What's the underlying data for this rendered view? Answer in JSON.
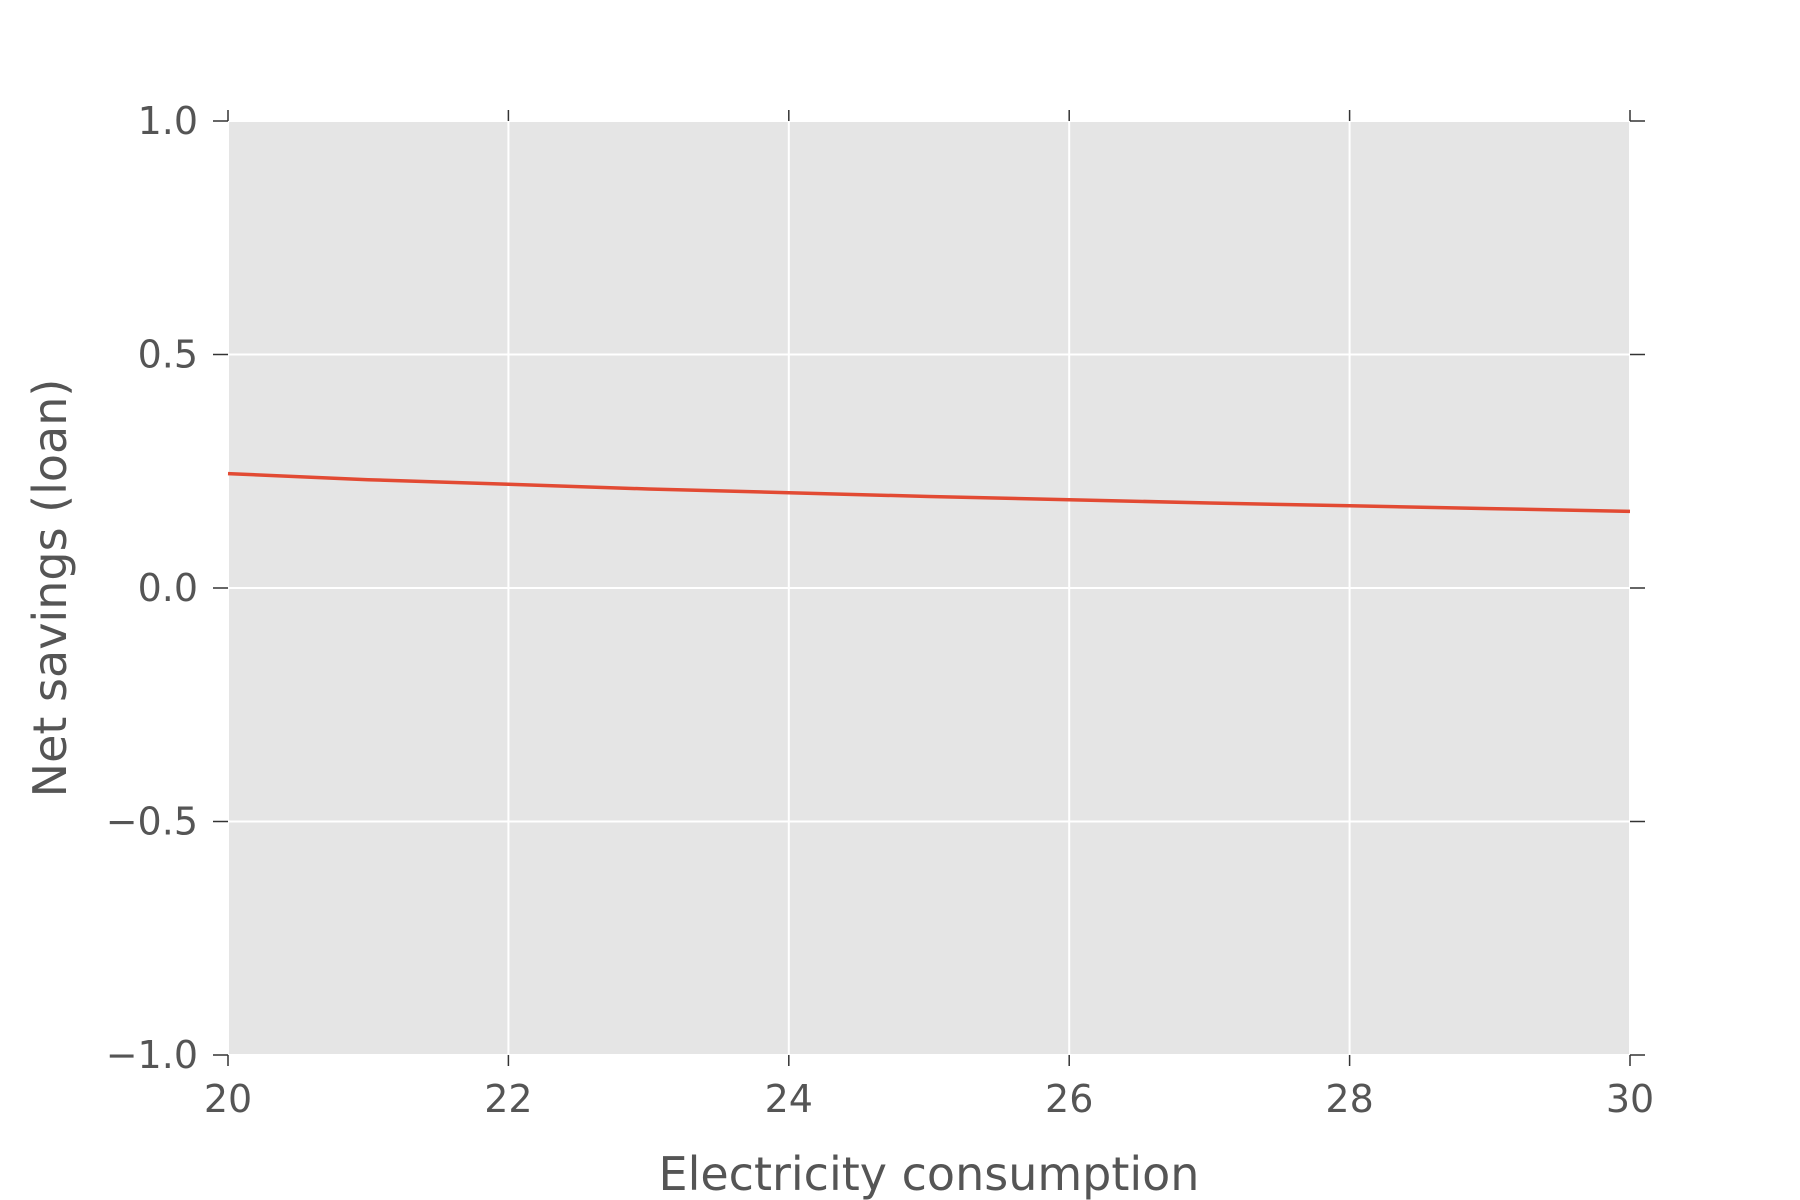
{
  "chart_data": {
    "type": "line",
    "title": "",
    "xlabel": "Electricity consumption",
    "ylabel": "Net savings (loan)",
    "xlim": [
      20,
      30
    ],
    "ylim": [
      -1.0,
      1.0
    ],
    "xticks": [
      20,
      22,
      24,
      26,
      28,
      30
    ],
    "xtick_labels": [
      "20",
      "22",
      "24",
      "26",
      "28",
      "30"
    ],
    "yticks": [
      -1.0,
      -0.5,
      0.0,
      0.5,
      1.0
    ],
    "ytick_labels": [
      "−1.0",
      "−0.5",
      "0.0",
      "0.5",
      "1.0"
    ],
    "grid": true,
    "series": [
      {
        "color": "#e24a33",
        "x": [
          20,
          21,
          22,
          23,
          24,
          25,
          26,
          27,
          28,
          29,
          30
        ],
        "y": [
          0.245,
          0.232,
          0.222,
          0.212,
          0.204,
          0.196,
          0.189,
          0.182,
          0.176,
          0.17,
          0.164
        ]
      }
    ]
  }
}
